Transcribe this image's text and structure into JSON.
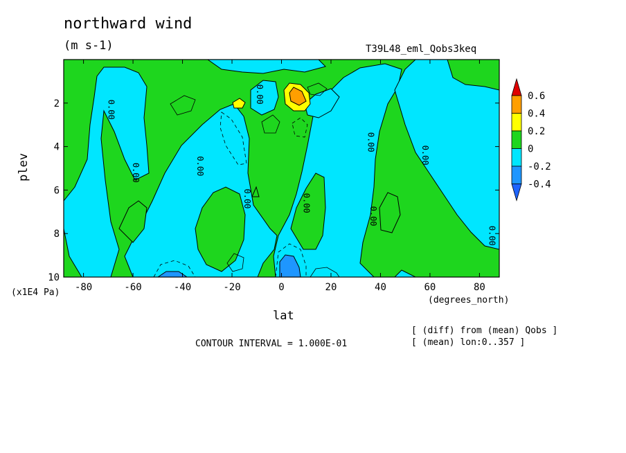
{
  "chart_data": {
    "type": "contour",
    "title": "northward wind",
    "units": "(m s-1)",
    "experiment": "T39L48_eml_Qobs3keq",
    "xlabel": "lat",
    "x_unit_label": "(degrees_north)",
    "ylabel": "plev",
    "y_unit_label": "(x1E4 Pa)",
    "xlim": [
      -88,
      88
    ],
    "ylim": [
      10,
      0
    ],
    "x_ticks": [
      -80,
      -60,
      -40,
      -20,
      0,
      20,
      40,
      60,
      80
    ],
    "x_tick_labels": [
      "-80",
      "-60",
      "-40",
      "-20",
      "0",
      "20",
      "40",
      "60",
      "80"
    ],
    "y_ticks": [
      2,
      4,
      6,
      8,
      10
    ],
    "y_tick_labels": [
      "2",
      "4",
      "6",
      "8",
      "10"
    ],
    "contour_interval_text": "CONTOUR INTERVAL = 1.000E-01",
    "notes": [
      "[ (diff) from (mean) Qobs ]",
      "[ (mean) lon:0..357 ]"
    ],
    "contour_label_text": "0.00",
    "colorbar": {
      "levels": [
        "0.6",
        "0.4",
        "0.2",
        "0",
        "-0.2",
        "-0.4"
      ],
      "colors": [
        "#e00000",
        "#ff9f00",
        "#ffff00",
        "#1ed61e",
        "#00e6ff",
        "#1e96ff",
        "#1e64ff"
      ]
    },
    "regions": [
      {
        "level": "negative",
        "approx_lat_range": [
          -75,
          -60
        ],
        "approx_plev_range": [
          0.5,
          9.8
        ]
      },
      {
        "level": "negative",
        "approx_lat_range": [
          -55,
          -5
        ],
        "approx_plev_range": [
          3,
          10
        ]
      },
      {
        "level": "negative",
        "approx_lat_range": [
          10,
          50
        ],
        "approx_plev_range": [
          0,
          10
        ]
      },
      {
        "level": "negative",
        "approx_lat_range": [
          55,
          88
        ],
        "approx_plev_range": [
          5,
          10
        ]
      },
      {
        "level": "positive",
        "approx_lat_range": [
          5,
          10
        ],
        "approx_plev_range": [
          1.2,
          2.5
        ],
        "peak": 0.4
      },
      {
        "level": "positive",
        "approx_lat_range": [
          -18,
          -14
        ],
        "approx_plev_range": [
          1.8,
          2.3
        ],
        "peak": 0.2
      },
      {
        "level": "strong-negative",
        "approx_lat_range": [
          -2,
          6
        ],
        "approx_plev_range": [
          8.8,
          10
        ],
        "peak": -0.3
      }
    ]
  }
}
